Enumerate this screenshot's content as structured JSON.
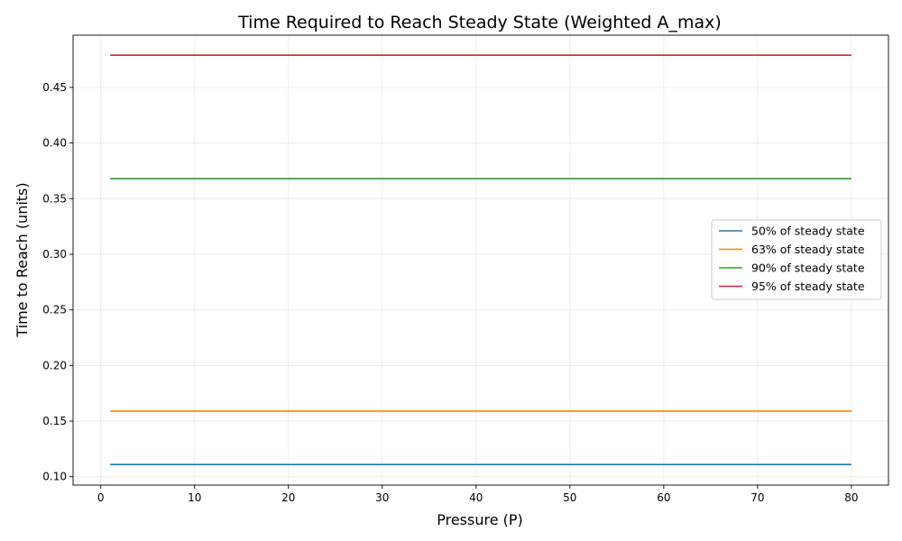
{
  "chart_data": {
    "type": "line",
    "title": "Time Required to Reach Steady State (Weighted A_max)",
    "xlabel": "Pressure (P)",
    "ylabel": "Time to Reach (units)",
    "xlim": [
      -2.95,
      83.95
    ],
    "ylim": [
      0.0925,
      0.497
    ],
    "x_ticks": [
      0,
      10,
      20,
      30,
      40,
      50,
      60,
      70,
      80
    ],
    "y_ticks": [
      0.1,
      0.15,
      0.2,
      0.25,
      0.3,
      0.35,
      0.4,
      0.45
    ],
    "x_tick_labels": [
      "0",
      "10",
      "20",
      "30",
      "40",
      "50",
      "60",
      "70",
      "80"
    ],
    "y_tick_labels": [
      "0.10",
      "0.15",
      "0.20",
      "0.25",
      "0.30",
      "0.35",
      "0.40",
      "0.45"
    ],
    "grid": true,
    "legend_position": "center-right",
    "x": [
      1,
      80
    ],
    "series": [
      {
        "name": "50% of steady state",
        "color": "#1f77b4",
        "values": [
          0.111,
          0.111
        ]
      },
      {
        "name": "63% of steady state",
        "color": "#ff7f0e",
        "values": [
          0.159,
          0.159
        ]
      },
      {
        "name": "90% of steady state",
        "color": "#2ca02c",
        "values": [
          0.368,
          0.368
        ]
      },
      {
        "name": "95% of steady state",
        "color": "#d62728",
        "values": [
          0.479,
          0.479
        ]
      }
    ]
  }
}
